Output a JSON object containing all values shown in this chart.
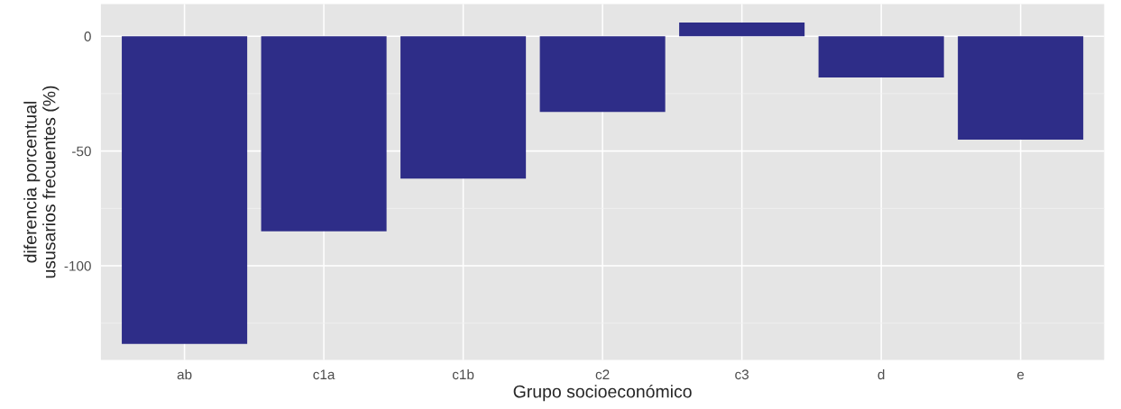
{
  "chart_data": {
    "type": "bar",
    "xlabel": "Grupo socioeconómico",
    "ylabel": "diferencia porcentual\nususarios frecuentes (%)",
    "categories": [
      "ab",
      "c1a",
      "c1b",
      "c2",
      "c3",
      "d",
      "e"
    ],
    "values": [
      -134,
      -85,
      -62,
      -33,
      6,
      -18,
      -45
    ],
    "color": "#2e2d88",
    "ylim": [
      -141,
      14
    ],
    "yticks": [
      {
        "value": 0,
        "label": "0"
      },
      {
        "value": -50,
        "label": "-50"
      },
      {
        "value": -100,
        "label": "-100"
      }
    ],
    "grid": true
  }
}
